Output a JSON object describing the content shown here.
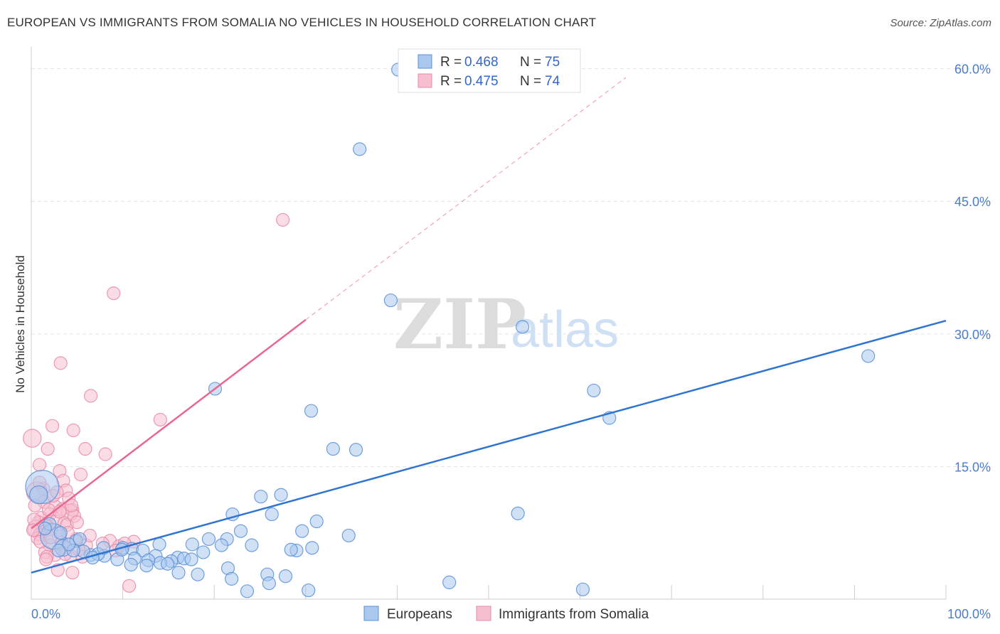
{
  "title": "EUROPEAN VS IMMIGRANTS FROM SOMALIA NO VEHICLES IN HOUSEHOLD CORRELATION CHART",
  "source": "Source: ZipAtlas.com",
  "watermark": {
    "zip": "ZIP",
    "atlas": "atlas"
  },
  "colors": {
    "blue_fill": "#aac8ee",
    "blue_stroke": "#5b8fd6",
    "blue_line": "#2f74d0",
    "pink_fill": "#f6bfd0",
    "pink_stroke": "#e98aa9",
    "pink_line": "#e8668f",
    "grid": "#e3e3e3",
    "tick_text": "#4a7bd0"
  },
  "legend": {
    "r_label": "R = ",
    "n_label": "N = ",
    "rows": [
      {
        "r": "0.468",
        "n": "75"
      },
      {
        "r": "0.475",
        "n": "74"
      }
    ]
  },
  "chart_data": {
    "type": "scatter",
    "title": "EUROPEAN VS IMMIGRANTS FROM SOMALIA NO VEHICLES IN HOUSEHOLD CORRELATION CHART",
    "xlabel": "",
    "ylabel": "No Vehicles in Household",
    "xlim": [
      0,
      100
    ],
    "ylim": [
      0,
      60
    ],
    "x_tick_labels": [
      "0.0%",
      "100.0%"
    ],
    "y_ticks": [
      15,
      30,
      45,
      60
    ],
    "y_tick_labels": [
      "15.0%",
      "30.0%",
      "45.0%",
      "60.0%"
    ],
    "grid": true,
    "legend_position": "top-center",
    "series": [
      {
        "name": "Europeans",
        "r": 0.468,
        "n": 75,
        "trend": {
          "x": [
            0,
            100
          ],
          "y": [
            3.0,
            31.5
          ]
        },
        "points": [
          {
            "x": 40.1,
            "y": 59.9,
            "s": 1
          },
          {
            "x": 35.9,
            "y": 50.9,
            "s": 1
          },
          {
            "x": 39.3,
            "y": 33.8,
            "s": 1
          },
          {
            "x": 53.7,
            "y": 30.8,
            "s": 1
          },
          {
            "x": 91.5,
            "y": 27.5,
            "s": 1
          },
          {
            "x": 61.5,
            "y": 23.6,
            "s": 1
          },
          {
            "x": 20.1,
            "y": 23.8,
            "s": 1
          },
          {
            "x": 30.6,
            "y": 21.3,
            "s": 1
          },
          {
            "x": 63.2,
            "y": 20.5,
            "s": 1
          },
          {
            "x": 33.0,
            "y": 17.0,
            "s": 1
          },
          {
            "x": 35.5,
            "y": 16.9,
            "s": 1
          },
          {
            "x": 1.2,
            "y": 12.7,
            "s": 2.6
          },
          {
            "x": 0.8,
            "y": 11.8,
            "s": 1.4
          },
          {
            "x": 25.1,
            "y": 11.6,
            "s": 1
          },
          {
            "x": 27.3,
            "y": 11.8,
            "s": 1
          },
          {
            "x": 22.0,
            "y": 9.6,
            "s": 1
          },
          {
            "x": 26.3,
            "y": 9.6,
            "s": 1
          },
          {
            "x": 53.2,
            "y": 9.7,
            "s": 1
          },
          {
            "x": 31.2,
            "y": 8.8,
            "s": 1
          },
          {
            "x": 29.6,
            "y": 7.7,
            "s": 1
          },
          {
            "x": 22.9,
            "y": 7.7,
            "s": 1
          },
          {
            "x": 34.7,
            "y": 7.2,
            "s": 1
          },
          {
            "x": 19.4,
            "y": 6.8,
            "s": 1
          },
          {
            "x": 21.4,
            "y": 6.8,
            "s": 1
          },
          {
            "x": 2.4,
            "y": 7.1,
            "s": 2.0
          },
          {
            "x": 4.9,
            "y": 6.6,
            "s": 1
          },
          {
            "x": 14.0,
            "y": 6.2,
            "s": 1
          },
          {
            "x": 17.6,
            "y": 6.2,
            "s": 1
          },
          {
            "x": 18.8,
            "y": 5.3,
            "s": 1
          },
          {
            "x": 20.8,
            "y": 6.1,
            "s": 1
          },
          {
            "x": 24.1,
            "y": 6.1,
            "s": 1
          },
          {
            "x": 29.0,
            "y": 5.5,
            "s": 1
          },
          {
            "x": 30.7,
            "y": 5.8,
            "s": 1
          },
          {
            "x": 28.4,
            "y": 5.6,
            "s": 1
          },
          {
            "x": 3.5,
            "y": 5.8,
            "s": 1.3
          },
          {
            "x": 6.5,
            "y": 5.0,
            "s": 1
          },
          {
            "x": 10.0,
            "y": 5.8,
            "s": 1
          },
          {
            "x": 11.0,
            "y": 5.7,
            "s": 1
          },
          {
            "x": 12.2,
            "y": 5.5,
            "s": 1
          },
          {
            "x": 13.6,
            "y": 4.9,
            "s": 1
          },
          {
            "x": 16.0,
            "y": 4.7,
            "s": 1
          },
          {
            "x": 16.7,
            "y": 4.6,
            "s": 1
          },
          {
            "x": 17.5,
            "y": 4.5,
            "s": 1
          },
          {
            "x": 15.3,
            "y": 4.3,
            "s": 1
          },
          {
            "x": 14.1,
            "y": 4.1,
            "s": 1
          },
          {
            "x": 12.8,
            "y": 4.4,
            "s": 1
          },
          {
            "x": 11.3,
            "y": 4.6,
            "s": 1
          },
          {
            "x": 9.4,
            "y": 4.5,
            "s": 1
          },
          {
            "x": 8.0,
            "y": 4.9,
            "s": 1
          },
          {
            "x": 7.3,
            "y": 5.1,
            "s": 1
          },
          {
            "x": 5.7,
            "y": 5.4,
            "s": 1
          },
          {
            "x": 4.6,
            "y": 5.5,
            "s": 1
          },
          {
            "x": 6.7,
            "y": 4.7,
            "s": 1
          },
          {
            "x": 10.9,
            "y": 3.9,
            "s": 1
          },
          {
            "x": 12.6,
            "y": 3.8,
            "s": 1
          },
          {
            "x": 14.9,
            "y": 4.0,
            "s": 1
          },
          {
            "x": 21.5,
            "y": 3.5,
            "s": 1
          },
          {
            "x": 16.1,
            "y": 3.0,
            "s": 1
          },
          {
            "x": 18.2,
            "y": 2.8,
            "s": 1
          },
          {
            "x": 25.8,
            "y": 2.8,
            "s": 1
          },
          {
            "x": 27.8,
            "y": 2.6,
            "s": 1
          },
          {
            "x": 21.9,
            "y": 2.3,
            "s": 1
          },
          {
            "x": 26.0,
            "y": 1.8,
            "s": 1
          },
          {
            "x": 23.6,
            "y": 0.9,
            "s": 1
          },
          {
            "x": 30.3,
            "y": 1.0,
            "s": 1
          },
          {
            "x": 45.7,
            "y": 1.9,
            "s": 1
          },
          {
            "x": 60.3,
            "y": 1.1,
            "s": 1
          },
          {
            "x": 3.2,
            "y": 7.5,
            "s": 1
          },
          {
            "x": 2.0,
            "y": 8.5,
            "s": 1
          },
          {
            "x": 1.5,
            "y": 8.0,
            "s": 1
          },
          {
            "x": 4.1,
            "y": 6.2,
            "s": 1
          },
          {
            "x": 3.0,
            "y": 5.5,
            "s": 1
          },
          {
            "x": 7.9,
            "y": 5.8,
            "s": 1
          },
          {
            "x": 9.9,
            "y": 5.6,
            "s": 1
          },
          {
            "x": 5.3,
            "y": 6.8,
            "s": 1
          }
        ]
      },
      {
        "name": "Immigrants from Somalia",
        "r": 0.475,
        "n": 74,
        "trend": {
          "x": [
            0,
            30
          ],
          "y": [
            8.0,
            31.6
          ]
        },
        "trend_extension": {
          "x": [
            30,
            65
          ],
          "y": [
            31.6,
            59.0
          ]
        },
        "points": [
          {
            "x": 27.5,
            "y": 42.9,
            "s": 1
          },
          {
            "x": 9.0,
            "y": 34.6,
            "s": 1
          },
          {
            "x": 3.2,
            "y": 26.7,
            "s": 1
          },
          {
            "x": 6.5,
            "y": 23.0,
            "s": 1
          },
          {
            "x": 14.1,
            "y": 20.3,
            "s": 1
          },
          {
            "x": 2.3,
            "y": 19.6,
            "s": 1
          },
          {
            "x": 4.6,
            "y": 19.1,
            "s": 1
          },
          {
            "x": 0.1,
            "y": 18.2,
            "s": 1.4
          },
          {
            "x": 1.8,
            "y": 17.0,
            "s": 1
          },
          {
            "x": 5.9,
            "y": 17.0,
            "s": 1
          },
          {
            "x": 8.1,
            "y": 16.4,
            "s": 1
          },
          {
            "x": 0.9,
            "y": 15.2,
            "s": 1
          },
          {
            "x": 3.1,
            "y": 14.5,
            "s": 1
          },
          {
            "x": 5.4,
            "y": 14.1,
            "s": 1
          },
          {
            "x": 3.5,
            "y": 13.4,
            "s": 1
          },
          {
            "x": 1.3,
            "y": 12.5,
            "s": 1
          },
          {
            "x": 0.6,
            "y": 12.1,
            "s": 1.6
          },
          {
            "x": 3.8,
            "y": 12.3,
            "s": 1
          },
          {
            "x": 4.1,
            "y": 11.4,
            "s": 1
          },
          {
            "x": 1.4,
            "y": 11.0,
            "s": 1
          },
          {
            "x": 2.6,
            "y": 10.5,
            "s": 1
          },
          {
            "x": 3.4,
            "y": 10.2,
            "s": 1
          },
          {
            "x": 4.5,
            "y": 10.1,
            "s": 1
          },
          {
            "x": 4.2,
            "y": 9.8,
            "s": 1.3
          },
          {
            "x": 2.0,
            "y": 9.6,
            "s": 1
          },
          {
            "x": 1.1,
            "y": 9.2,
            "s": 1
          },
          {
            "x": 0.8,
            "y": 8.7,
            "s": 1
          },
          {
            "x": 2.7,
            "y": 8.8,
            "s": 1
          },
          {
            "x": 3.6,
            "y": 8.6,
            "s": 1
          },
          {
            "x": 1.7,
            "y": 8.3,
            "s": 1
          },
          {
            "x": 0.5,
            "y": 8.0,
            "s": 1.3
          },
          {
            "x": 2.2,
            "y": 7.9,
            "s": 1
          },
          {
            "x": 1.3,
            "y": 7.6,
            "s": 1
          },
          {
            "x": 0.9,
            "y": 7.3,
            "s": 1
          },
          {
            "x": 3.0,
            "y": 7.1,
            "s": 1
          },
          {
            "x": 4.9,
            "y": 6.8,
            "s": 1
          },
          {
            "x": 8.6,
            "y": 6.6,
            "s": 1
          },
          {
            "x": 11.2,
            "y": 6.5,
            "s": 1
          },
          {
            "x": 9.6,
            "y": 6.0,
            "s": 1
          },
          {
            "x": 2.0,
            "y": 6.1,
            "s": 1
          },
          {
            "x": 3.5,
            "y": 5.9,
            "s": 1
          },
          {
            "x": 1.5,
            "y": 5.3,
            "s": 1
          },
          {
            "x": 2.6,
            "y": 5.0,
            "s": 1
          },
          {
            "x": 1.7,
            "y": 4.8,
            "s": 1
          },
          {
            "x": 4.3,
            "y": 4.9,
            "s": 1
          },
          {
            "x": 0.7,
            "y": 6.9,
            "s": 1
          },
          {
            "x": 2.9,
            "y": 3.3,
            "s": 1
          },
          {
            "x": 4.5,
            "y": 3.0,
            "s": 1
          },
          {
            "x": 10.7,
            "y": 1.5,
            "s": 1
          },
          {
            "x": 5.6,
            "y": 4.8,
            "s": 1
          },
          {
            "x": 6.0,
            "y": 6.1,
            "s": 1
          },
          {
            "x": 3.9,
            "y": 8.4,
            "s": 1
          },
          {
            "x": 4.7,
            "y": 9.4,
            "s": 1
          },
          {
            "x": 1.9,
            "y": 10.1,
            "s": 1
          },
          {
            "x": 2.4,
            "y": 11.7,
            "s": 1
          },
          {
            "x": 0.4,
            "y": 10.6,
            "s": 1
          },
          {
            "x": 4.0,
            "y": 7.5,
            "s": 1
          },
          {
            "x": 5.2,
            "y": 5.6,
            "s": 1
          },
          {
            "x": 6.4,
            "y": 7.2,
            "s": 1
          },
          {
            "x": 7.8,
            "y": 6.3,
            "s": 1
          },
          {
            "x": 3.3,
            "y": 6.4,
            "s": 1
          },
          {
            "x": 1.0,
            "y": 6.5,
            "s": 1
          },
          {
            "x": 2.8,
            "y": 12.1,
            "s": 1
          },
          {
            "x": 0.3,
            "y": 9.0,
            "s": 1
          },
          {
            "x": 3.1,
            "y": 9.9,
            "s": 1
          },
          {
            "x": 4.4,
            "y": 10.6,
            "s": 1
          },
          {
            "x": 0.9,
            "y": 13.2,
            "s": 1
          },
          {
            "x": 2.1,
            "y": 7.0,
            "s": 1
          },
          {
            "x": 3.7,
            "y": 5.1,
            "s": 1
          },
          {
            "x": 5.0,
            "y": 8.7,
            "s": 1
          },
          {
            "x": 1.6,
            "y": 4.5,
            "s": 1
          },
          {
            "x": 9.2,
            "y": 5.5,
            "s": 1
          },
          {
            "x": 10.2,
            "y": 6.3,
            "s": 1
          },
          {
            "x": 0.2,
            "y": 7.8,
            "s": 1
          }
        ]
      }
    ]
  }
}
